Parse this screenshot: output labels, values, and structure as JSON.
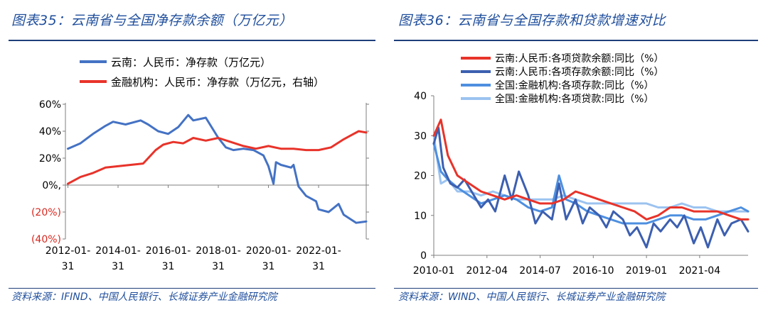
{
  "left": {
    "title": "图表35：云南省与全国净存款余额（万亿元）",
    "source": "资料来源：IFIND、中国人民银行、长城证券产业金融研究院",
    "chart_data": {
      "type": "line",
      "title": "图表35：云南省与全国净存款余额（万亿元）",
      "x_labels": [
        "2012-01-\n31",
        "2014-01-\n31",
        "2016-01-\n31",
        "2018-01-\n31",
        "2020-01-\n31",
        "2022-01-\n31"
      ],
      "x_ticks": [
        2012.0,
        2014.0,
        2016.0,
        2018.0,
        2020.0,
        2022.0
      ],
      "xlim": [
        2011.9,
        2023.9
      ],
      "y_left_ticks": [
        "60%",
        "40%",
        "20%",
        "0%,",
        "(20%)",
        "(40%)"
      ],
      "y_left_values": [
        60,
        40,
        20,
        0,
        -20,
        -40
      ],
      "ylim": [
        -44,
        60
      ],
      "series": [
        {
          "name": "云南：人民币：净存款（万亿元）",
          "color": "#4472c4",
          "x": [
            2012.0,
            2012.5,
            2013.0,
            2013.5,
            2013.8,
            2014.3,
            2014.9,
            2015.2,
            2015.6,
            2016.0,
            2016.4,
            2016.8,
            2017.0,
            2017.5,
            2018.0,
            2018.3,
            2018.6,
            2019.0,
            2019.4,
            2019.8,
            2020.0,
            2020.2,
            2020.3,
            2020.5,
            2020.9,
            2021.0,
            2021.2,
            2021.5,
            2021.9,
            2022.0,
            2022.4,
            2022.8,
            2023.0,
            2023.5,
            2023.9
          ],
          "values": [
            27,
            31,
            38,
            44,
            47,
            45,
            48,
            45,
            40,
            38,
            43,
            52,
            48,
            50,
            35,
            28,
            26,
            27,
            26,
            22,
            14,
            1,
            17,
            15,
            13,
            15,
            -1,
            -8,
            -12,
            -18,
            -20,
            -14,
            -22,
            -28,
            -27
          ]
        },
        {
          "name": "金融机构：人民币：净存款（万亿元，右轴）",
          "color": "#e8332a",
          "x": [
            2012.0,
            2012.5,
            2013.0,
            2013.5,
            2014.0,
            2014.5,
            2015.0,
            2015.5,
            2015.8,
            2016.2,
            2016.6,
            2017.0,
            2017.5,
            2018.0,
            2018.5,
            2019.0,
            2019.5,
            2020.0,
            2020.5,
            2021.0,
            2021.5,
            2022.0,
            2022.5,
            2023.0,
            2023.3,
            2023.6,
            2023.9
          ],
          "values": [
            1,
            6,
            9,
            13,
            14,
            15,
            16,
            26,
            30,
            32,
            31,
            35,
            33,
            35,
            32,
            29,
            27,
            29,
            27,
            27,
            26,
            26,
            28,
            34,
            37,
            40,
            39
          ]
        }
      ]
    }
  },
  "right": {
    "title": "图表36：云南省与全国存款和贷款增速对比",
    "source": "资料来源：WIND、中国人民银行、长城证券产业金融研究院",
    "chart_data": {
      "type": "line",
      "title": "图表36：云南省与全国存款和贷款增速对比",
      "x_labels": [
        "2010-01",
        "2012-04",
        "2014-07",
        "2016-10",
        "2019-01",
        "2021-04"
      ],
      "x_ticks": [
        2010.0,
        2012.25,
        2014.5,
        2016.75,
        2019.0,
        2021.25
      ],
      "xlim": [
        2010.0,
        2023.3
      ],
      "y_ticks": [
        "0",
        "10",
        "20",
        "30",
        "40"
      ],
      "y_values": [
        0,
        10,
        20,
        30,
        40
      ],
      "ylim": [
        0,
        40
      ],
      "series": [
        {
          "name": "云南:人民币:各项贷款余额:同比（%）",
          "color": "#e8332a",
          "x": [
            2010.0,
            2010.3,
            2010.6,
            2011.0,
            2011.5,
            2012.0,
            2012.5,
            2013.0,
            2013.5,
            2014.0,
            2014.5,
            2015.0,
            2015.5,
            2016.0,
            2016.5,
            2017.0,
            2017.5,
            2018.0,
            2018.5,
            2019.0,
            2019.5,
            2020.0,
            2020.5,
            2021.0,
            2021.5,
            2022.0,
            2022.5,
            2023.0,
            2023.3
          ],
          "values": [
            30,
            34,
            25,
            20,
            18,
            16,
            15,
            14,
            15,
            14,
            13,
            13,
            14,
            16,
            15,
            14,
            13,
            12,
            11,
            9,
            10,
            12,
            12,
            11,
            11,
            11,
            10,
            9,
            9
          ]
        },
        {
          "name": "云南:人民币:各项存款余额:同比（%）",
          "color": "#3c5fb0",
          "x": [
            2010.0,
            2010.2,
            2010.4,
            2010.7,
            2011.0,
            2011.3,
            2011.6,
            2012.0,
            2012.3,
            2012.6,
            2013.0,
            2013.3,
            2013.6,
            2014.0,
            2014.3,
            2014.6,
            2015.0,
            2015.3,
            2015.6,
            2016.0,
            2016.3,
            2016.6,
            2017.0,
            2017.3,
            2017.6,
            2018.0,
            2018.3,
            2018.6,
            2019.0,
            2019.3,
            2019.6,
            2020.0,
            2020.3,
            2020.6,
            2021.0,
            2021.3,
            2021.6,
            2022.0,
            2022.3,
            2022.6,
            2023.0,
            2023.3
          ],
          "values": [
            28,
            32,
            22,
            18,
            17,
            19,
            16,
            12,
            14,
            11,
            20,
            14,
            21,
            15,
            8,
            11,
            9,
            18,
            9,
            14,
            8,
            12,
            10,
            7,
            11,
            9,
            5,
            7,
            2,
            8,
            6,
            9,
            7,
            10,
            3,
            7,
            2,
            9,
            5,
            8,
            9,
            6
          ]
        },
        {
          "name": "全国:金融机构:各项存款:同比（%）",
          "color": "#4d8fe0",
          "x": [
            2010.0,
            2010.3,
            2010.6,
            2011.0,
            2011.5,
            2012.0,
            2012.5,
            2013.0,
            2013.5,
            2014.0,
            2014.5,
            2015.0,
            2015.3,
            2015.6,
            2016.0,
            2016.5,
            2017.0,
            2017.5,
            2018.0,
            2018.5,
            2019.0,
            2019.5,
            2020.0,
            2020.5,
            2021.0,
            2021.5,
            2022.0,
            2022.5,
            2023.0,
            2023.3
          ],
          "values": [
            28,
            21,
            19,
            17,
            15,
            13,
            14,
            15,
            14,
            12,
            11,
            12,
            20,
            14,
            13,
            11,
            10,
            9,
            8,
            8,
            8,
            9,
            10,
            10,
            9,
            9,
            10,
            11,
            12,
            11
          ]
        },
        {
          "name": "全国:金融机构:各项贷款:同比（%）",
          "color": "#9cc3f0",
          "x": [
            2010.0,
            2010.3,
            2010.6,
            2011.0,
            2011.5,
            2012.0,
            2012.5,
            2013.0,
            2013.5,
            2014.0,
            2014.5,
            2015.0,
            2015.5,
            2016.0,
            2016.5,
            2017.0,
            2017.5,
            2018.0,
            2018.5,
            2019.0,
            2019.5,
            2020.0,
            2020.5,
            2021.0,
            2021.5,
            2022.0,
            2022.5,
            2023.0,
            2023.3
          ],
          "values": [
            30,
            18,
            19,
            16,
            16,
            15,
            16,
            15,
            14,
            14,
            14,
            14,
            15,
            14,
            13,
            13,
            13,
            13,
            13,
            13,
            12,
            12,
            13,
            12,
            12,
            11,
            11,
            11,
            11
          ]
        }
      ]
    }
  }
}
